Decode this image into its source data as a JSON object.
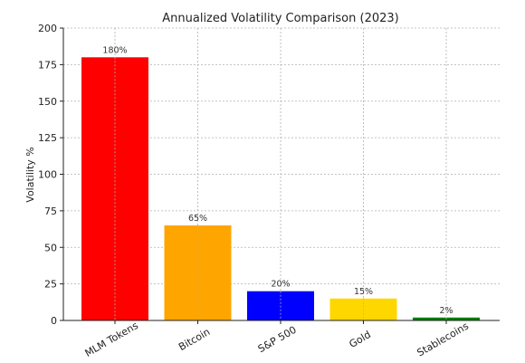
{
  "chart_data": {
    "type": "bar",
    "title": "Annualized Volatility Comparison (2023)",
    "xlabel": "",
    "ylabel": "Volatility %",
    "categories": [
      "MLM Tokens",
      "Bitcoin",
      "S&P 500",
      "Gold",
      "Stablecoins"
    ],
    "values": [
      180,
      65,
      20,
      15,
      2
    ],
    "data_labels": [
      "180%",
      "65%",
      "20%",
      "15%",
      "2%"
    ],
    "colors": [
      "#ff0000",
      "#ffa500",
      "#0000ff",
      "#ffd700",
      "#008000"
    ],
    "ylim": [
      0,
      200
    ],
    "yticks": [
      0,
      25,
      50,
      75,
      100,
      125,
      150,
      175,
      200
    ],
    "grid": true,
    "grid_style": "dashed",
    "legend": "none"
  }
}
